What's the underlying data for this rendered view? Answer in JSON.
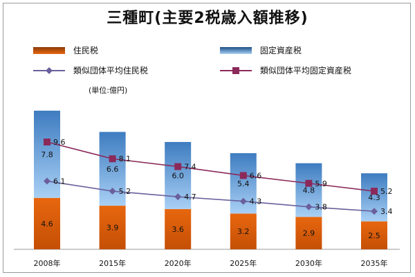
{
  "chart_data": {
    "type": "bar",
    "title": "三種町(主要2税歳入額推移)",
    "unit_label": "(単位:億円)",
    "categories": [
      "2008年",
      "2015年",
      "2020年",
      "2025年",
      "2030年",
      "2035年"
    ],
    "stacked_series": [
      {
        "name": "住民税",
        "values": [
          4.6,
          3.9,
          3.6,
          3.2,
          2.9,
          2.5
        ],
        "color": "#e8670f"
      },
      {
        "name": "固定資産税",
        "values": [
          7.8,
          6.6,
          6.0,
          5.4,
          4.8,
          4.3
        ],
        "color": "#7fb2e6"
      }
    ],
    "line_series": [
      {
        "name": "類似団体平均住民税",
        "values": [
          6.1,
          5.2,
          4.7,
          4.3,
          3.8,
          3.4
        ],
        "color": "#6a5f9c",
        "marker": "diamond"
      },
      {
        "name": "類似団体平均固定資産税",
        "values": [
          9.6,
          8.1,
          7.4,
          6.6,
          5.9,
          5.2
        ],
        "color": "#8b2a5a",
        "marker": "square"
      }
    ],
    "ylim": [
      0,
      14
    ],
    "grid": false,
    "legend_position": "top"
  }
}
